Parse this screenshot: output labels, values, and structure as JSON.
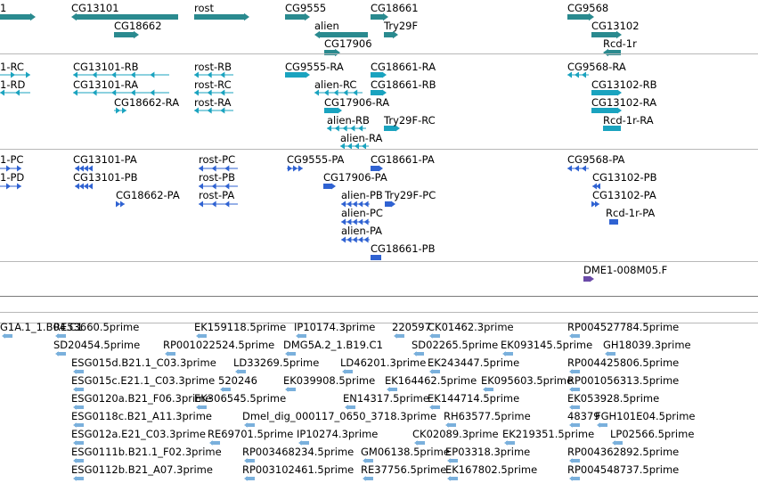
{
  "colors": {
    "gene": "#2a8a8f",
    "transcript": "#1aa3bf",
    "protein": "#2f62d2",
    "clone": "#6a4aa8",
    "est": "#7ab0dc"
  },
  "gene_track": {
    "labels": [
      "1",
      "CG13101",
      "rost",
      "CG9555",
      "CG18661",
      "CG9568",
      "CG18662",
      "alien",
      "Try29F",
      "CG13102",
      "CG17906",
      "Rcd-1r"
    ]
  },
  "transcript_track": {
    "labels": [
      "1-RC",
      "CG13101-RB",
      "rost-RB",
      "CG9555-RA",
      "CG18661-RA",
      "CG9568-RA",
      "1-RD",
      "CG13101-RA",
      "rost-RC",
      "alien-RC",
      "CG18661-RB",
      "CG13102-RB",
      "CG18662-RA",
      "rost-RA",
      "CG17906-RA",
      "CG13102-RA",
      "alien-RB",
      "Try29F-RC",
      "Rcd-1r-RA",
      "alien-RA"
    ]
  },
  "protein_track": {
    "labels": [
      "1-PC",
      "CG13101-PA",
      "rost-PC",
      "CG9555-PA",
      "CG18661-PA",
      "CG9568-PA",
      "1-PD",
      "CG13101-PB",
      "rost-PB",
      "CG17906-PA",
      "CG13102-PB",
      "CG18662-PA",
      "rost-PA",
      "alien-PB",
      "Try29F-PC",
      "CG13102-PA",
      "alien-PC",
      "Rcd-1r-PA",
      "alien-PA",
      "CG18661-PB"
    ]
  },
  "clone_track": {
    "labels": [
      "DME1-008M05.F"
    ]
  },
  "est_track": {
    "labels": [
      "G1A.1_1.B04.C1",
      "RE53660.5prime",
      "EK159118.5prime",
      "IP10174.3prime",
      "220597",
      "CK01462.3prime",
      "RP004527784.5prime",
      "SD20454.5prime",
      "RP001022524.5prime",
      "DMG5A.2_1.B19.C1",
      "SD02265.5prime",
      "EK093145.5prime",
      "GH18039.3prime",
      "ESG015d.B21.1_C03.3prime",
      "LD33269.5prime",
      "LD46201.3prime",
      "EK243447.5prime",
      "RP004425806.5prime",
      "ESG015c.E21.1_C03.3prime",
      "520246",
      "EK039908.5prime",
      "EK164462.5prime",
      "EK095603.5prime",
      "RP001056313.5prime",
      "ESG0120a.B21_F06.3prime",
      "EK306545.5prime",
      "EN14317.5prime",
      "EK144714.5prime",
      "EK053928.5prime",
      "ESG0118c.B21_A11.3prime",
      "Dmel_dig_000117_0650_3718.3prime",
      "RH63577.5prime",
      "48379",
      "FGH101E04.5prime",
      "ESG012a.E21_C03.3prime",
      "RE69701.5prime",
      "IP10274.3prime",
      "CK02089.3prime",
      "EK219351.5prime",
      "LP02566.5prime",
      "ESG0111b.B21.1_F02.3prime",
      "RP003468234.5prime",
      "GM06138.5prime",
      "EP03318.3prime",
      "RP004362892.5prime",
      "ESG0112b.B21_A07.3prime",
      "RP003102461.5prime",
      "RE37756.5prime",
      "EK167802.5prime",
      "RP004548737.5prime"
    ]
  }
}
